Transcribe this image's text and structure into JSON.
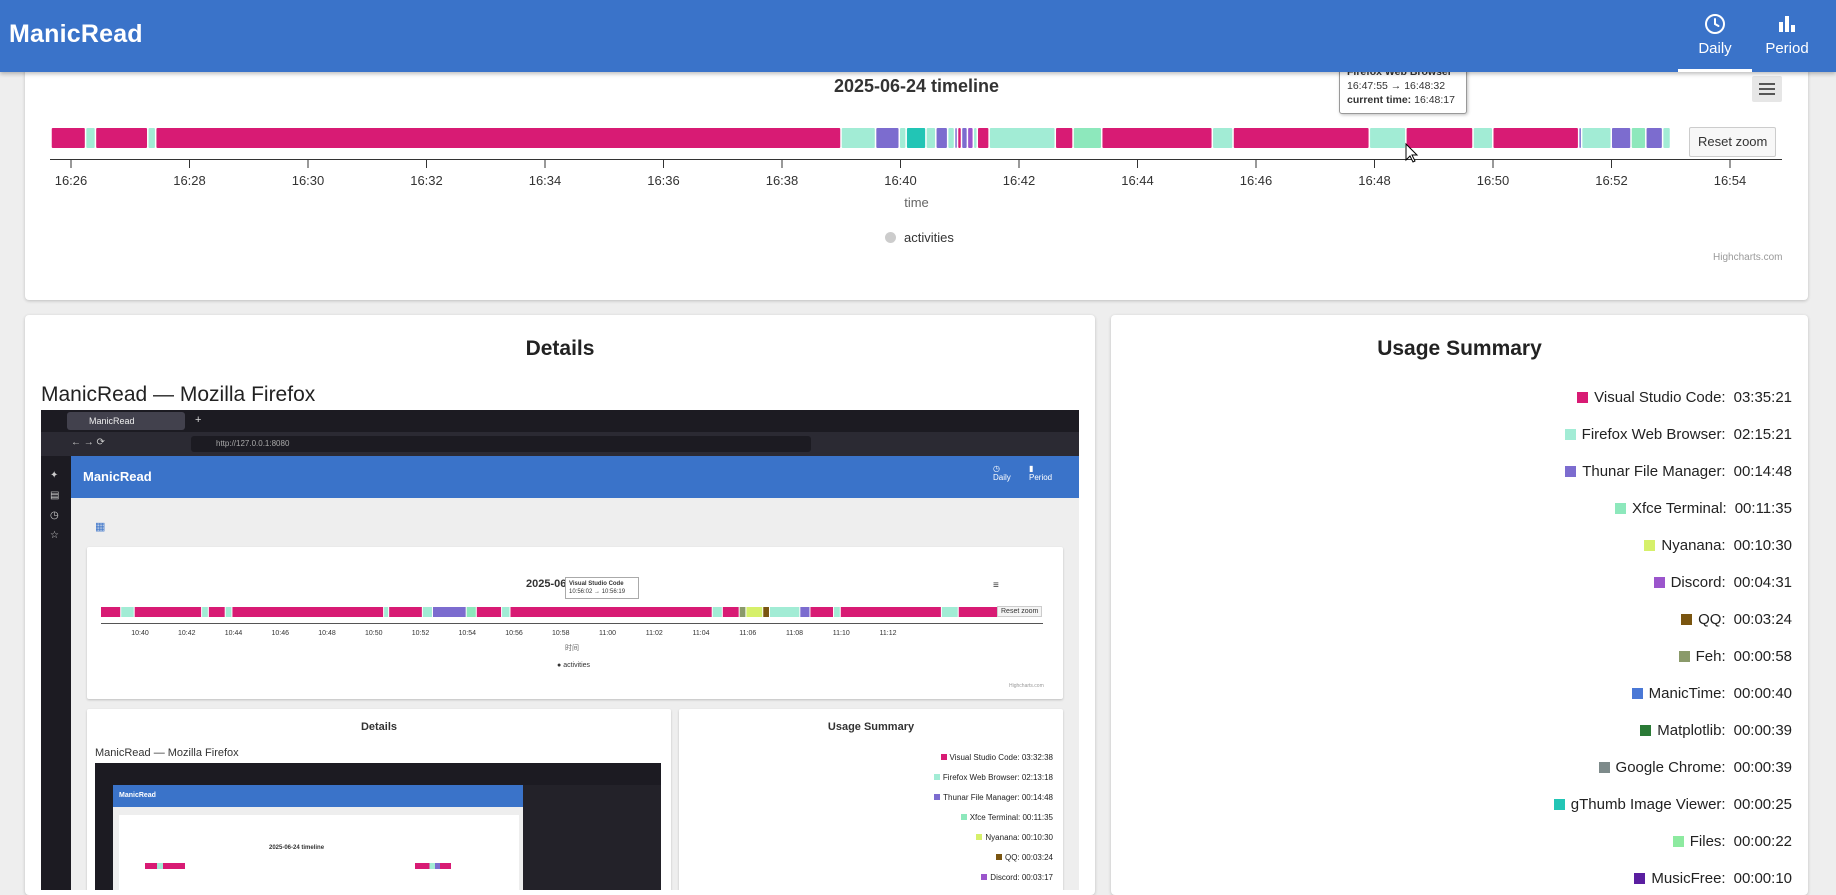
{
  "app": {
    "title": "ManicRead",
    "nav": [
      {
        "label": "Daily",
        "icon": "clock-icon",
        "active": true
      },
      {
        "label": "Period",
        "icon": "bar-chart-icon",
        "active": false
      }
    ]
  },
  "timeline": {
    "title": "2025-06-24 timeline",
    "axis_title": "time",
    "legend": "activities",
    "reset_zoom": "Reset zoom",
    "credits": "Highcharts.com",
    "tooltip": {
      "title": "Firefox Web Browser",
      "range": "16:47:55 → 16:48:32",
      "current": "current time:",
      "current_value": "16:48:17"
    }
  },
  "chart_data": {
    "type": "timeline",
    "title": "2025-06-24 timeline",
    "xlabel": "time",
    "legend": [
      "activities"
    ],
    "x_ticks": [
      "16:26",
      "16:28",
      "16:30",
      "16:32",
      "16:34",
      "16:36",
      "16:38",
      "16:40",
      "16:42",
      "16:44",
      "16:46",
      "16:48",
      "16:50",
      "16:52",
      "16:54"
    ],
    "xlim": [
      "16:25:40",
      "16:54:40"
    ],
    "colors": {
      "Visual Studio Code": "#d81b74",
      "Firefox Web Browser": "#a2ecd5",
      "Thunar File Manager": "#7c6ccf",
      "Xfce Terminal": "#8de8bc",
      "gThumb Image Viewer": "#22c5b5",
      "Discord": "#9b55cc"
    },
    "segments": [
      {
        "app": "Visual Studio Code",
        "start": "16:25:40",
        "end": "16:26:15"
      },
      {
        "app": "Firefox Web Browser",
        "start": "16:26:15",
        "end": "16:26:25"
      },
      {
        "app": "Visual Studio Code",
        "start": "16:26:25",
        "end": "16:27:18"
      },
      {
        "app": "Firefox Web Browser",
        "start": "16:27:18",
        "end": "16:27:26"
      },
      {
        "app": "Visual Studio Code",
        "start": "16:27:26",
        "end": "16:39:00"
      },
      {
        "app": "Firefox Web Browser",
        "start": "16:39:00",
        "end": "16:39:35"
      },
      {
        "app": "Thunar File Manager",
        "start": "16:39:35",
        "end": "16:39:59"
      },
      {
        "app": "Firefox Web Browser",
        "start": "16:39:59",
        "end": "16:40:06"
      },
      {
        "app": "gThumb Image Viewer",
        "start": "16:40:06",
        "end": "16:40:26"
      },
      {
        "app": "Firefox Web Browser",
        "start": "16:40:26",
        "end": "16:40:36"
      },
      {
        "app": "Thunar File Manager",
        "start": "16:40:36",
        "end": "16:40:48"
      },
      {
        "app": "Firefox Web Browser",
        "start": "16:40:48",
        "end": "16:40:55"
      },
      {
        "app": "Thunar File Manager",
        "start": "16:40:55",
        "end": "16:40:58"
      },
      {
        "app": "Visual Studio Code",
        "start": "16:40:58",
        "end": "16:41:02"
      },
      {
        "app": "Thunar File Manager",
        "start": "16:41:02",
        "end": "16:41:08"
      },
      {
        "app": "Discord",
        "start": "16:41:08",
        "end": "16:41:14"
      },
      {
        "app": "Firefox Web Browser",
        "start": "16:41:14",
        "end": "16:41:18"
      },
      {
        "app": "Visual Studio Code",
        "start": "16:41:18",
        "end": "16:41:30"
      },
      {
        "app": "Firefox Web Browser",
        "start": "16:41:30",
        "end": "16:42:37"
      },
      {
        "app": "Visual Studio Code",
        "start": "16:42:37",
        "end": "16:42:55"
      },
      {
        "app": "Xfce Terminal",
        "start": "16:42:55",
        "end": "16:43:24"
      },
      {
        "app": "Visual Studio Code",
        "start": "16:43:24",
        "end": "16:45:16"
      },
      {
        "app": "Firefox Web Browser",
        "start": "16:45:16",
        "end": "16:45:37"
      },
      {
        "app": "Visual Studio Code",
        "start": "16:45:37",
        "end": "16:47:55"
      },
      {
        "app": "Firefox Web Browser",
        "start": "16:47:55",
        "end": "16:48:32"
      },
      {
        "app": "Visual Studio Code",
        "start": "16:48:32",
        "end": "16:49:40"
      },
      {
        "app": "Firefox Web Browser",
        "start": "16:49:40",
        "end": "16:50:00"
      },
      {
        "app": "Visual Studio Code",
        "start": "16:50:00",
        "end": "16:51:27"
      },
      {
        "app": "Thunar File Manager",
        "start": "16:51:27",
        "end": "16:51:30"
      },
      {
        "app": "Firefox Web Browser",
        "start": "16:51:30",
        "end": "16:52:00"
      },
      {
        "app": "Thunar File Manager",
        "start": "16:52:00",
        "end": "16:52:20"
      },
      {
        "app": "Xfce Terminal",
        "start": "16:52:20",
        "end": "16:52:35"
      },
      {
        "app": "Thunar File Manager",
        "start": "16:52:35",
        "end": "16:52:52"
      },
      {
        "app": "Firefox Web Browser",
        "start": "16:52:52",
        "end": "16:53:00"
      }
    ]
  },
  "details": {
    "title": "Details",
    "window_title": "ManicRead — Mozilla Firefox",
    "screenshot": {
      "tab_label": "ManicRead",
      "url": "http://127.0.0.1:8080",
      "app_title": "ManicRead",
      "nav_daily": "Daily",
      "nav_period": "Period",
      "chart_title": "2025-06",
      "tooltip_title": "Visual Studio Code",
      "tooltip_range": "10:56:02 → 10:56:19",
      "reset_zoom": "Reset zoom",
      "ticks": [
        "10:40",
        "10:42",
        "10:44",
        "10:46",
        "10:48",
        "10:50",
        "10:52",
        "10:54",
        "10:56",
        "10:58",
        "11:00",
        "11:02",
        "11:04",
        "11:06",
        "11:08",
        "11:10",
        "11:12"
      ],
      "axis_title": "时间",
      "legend": "activities",
      "credits": "Highcharts.com",
      "details_title": "Details",
      "window_title": "ManicRead — Mozilla Firefox",
      "inner_title": "2025-06-24 timeline",
      "usage_title": "Usage Summary",
      "usage": [
        {
          "name": "Visual Studio Code",
          "time": "03:32:38",
          "color": "#d81b74"
        },
        {
          "name": "Firefox Web Browser",
          "time": "02:13:18",
          "color": "#a2ecd5"
        },
        {
          "name": "Thunar File Manager",
          "time": "00:14:48",
          "color": "#7c6ccf"
        },
        {
          "name": "Xfce Terminal",
          "time": "00:11:35",
          "color": "#8de8bc"
        },
        {
          "name": "Nyanana",
          "time": "00:10:30",
          "color": "#d6f06a"
        },
        {
          "name": "QQ",
          "time": "00:03:24",
          "color": "#7a5510"
        },
        {
          "name": "Discord",
          "time": "00:03:17",
          "color": "#9b55cc"
        }
      ]
    }
  },
  "usage": {
    "title": "Usage Summary",
    "items": [
      {
        "name": "Visual Studio Code",
        "time": "03:35:21",
        "color": "#d81b74"
      },
      {
        "name": "Firefox Web Browser",
        "time": "02:15:21",
        "color": "#a2ecd5"
      },
      {
        "name": "Thunar File Manager",
        "time": "00:14:48",
        "color": "#7c6ccf"
      },
      {
        "name": "Xfce Terminal",
        "time": "00:11:35",
        "color": "#8de8bc"
      },
      {
        "name": "Nyanana",
        "time": "00:10:30",
        "color": "#d6f06a"
      },
      {
        "name": "Discord",
        "time": "00:04:31",
        "color": "#9b55cc"
      },
      {
        "name": "QQ",
        "time": "00:03:24",
        "color": "#7a5510"
      },
      {
        "name": "Feh",
        "time": "00:00:58",
        "color": "#8a9a6a"
      },
      {
        "name": "ManicTime",
        "time": "00:00:40",
        "color": "#4a78d6"
      },
      {
        "name": "Matplotlib",
        "time": "00:00:39",
        "color": "#2a7a36"
      },
      {
        "name": "Google Chrome",
        "time": "00:00:39",
        "color": "#7d8a8a"
      },
      {
        "name": "gThumb Image Viewer",
        "time": "00:00:25",
        "color": "#22c5b5"
      },
      {
        "name": "Files",
        "time": "00:00:22",
        "color": "#8deaa0"
      },
      {
        "name": "MusicFree",
        "time": "00:00:10",
        "color": "#5a1ea0"
      }
    ]
  }
}
